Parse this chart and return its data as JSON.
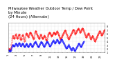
{
  "title": "Milwaukee Weather Outdoor Temp / Dew Point",
  "subtitle": "by Minute",
  "subtitle2": "(24 Hours) (Alternate)",
  "bg_color": "#ffffff",
  "plot_bg_color": "#ffffff",
  "grid_color": "#c0c0c0",
  "red_color": "#ff0000",
  "blue_color": "#0000ff",
  "title_fontsize": 3.8,
  "tick_fontsize": 2.5,
  "ylim": [
    10,
    90
  ],
  "ytick_vals": [
    10,
    20,
    30,
    40,
    50,
    60,
    70,
    80
  ],
  "ytick_labels": [
    "1.",
    "2.",
    "3.",
    "4.",
    "5.",
    "6.",
    "7.",
    "8."
  ],
  "red_data": [
    22,
    21,
    20,
    20,
    19,
    19,
    18,
    18,
    18,
    18,
    19,
    20,
    22,
    24,
    26,
    29,
    33,
    38,
    43,
    47,
    50,
    52,
    54,
    55,
    55,
    54,
    52,
    50,
    49,
    48,
    48,
    49,
    50,
    52,
    54,
    56,
    57,
    59,
    60,
    59,
    57,
    55,
    53,
    52,
    50,
    49,
    48,
    48,
    49,
    50,
    52,
    54,
    55,
    57,
    58,
    59,
    59,
    58,
    56,
    54,
    52,
    50,
    47,
    46,
    45,
    44,
    45,
    46,
    48,
    50,
    53,
    54,
    56,
    57,
    58,
    57,
    55,
    54,
    52,
    50,
    47,
    45,
    43,
    41,
    40,
    42,
    45,
    49,
    53,
    57,
    59,
    60,
    61,
    62,
    62,
    61,
    60,
    58,
    57,
    56,
    55,
    54,
    53,
    52,
    52,
    53,
    54,
    56,
    58,
    61,
    62,
    63,
    64,
    65,
    65,
    64,
    63,
    62,
    61,
    60,
    58,
    57,
    56,
    55,
    54,
    53,
    52,
    51,
    50,
    48,
    47,
    46,
    47,
    49,
    52,
    55,
    58,
    62,
    64,
    66,
    67,
    68,
    68,
    67,
    66,
    65,
    63,
    61,
    60,
    58,
    57,
    56,
    55,
    54,
    53,
    52,
    51,
    50,
    48,
    47,
    47,
    48,
    49,
    51,
    53,
    54,
    56,
    58,
    59,
    58,
    57,
    55,
    54,
    52,
    51,
    50,
    49,
    48,
    47,
    47,
    48,
    49,
    51,
    52,
    53,
    54,
    55,
    56,
    55,
    54,
    53,
    52,
    51,
    47,
    46,
    45,
    44,
    43,
    42,
    43,
    44,
    46,
    48,
    51,
    53,
    55,
    57,
    58,
    59,
    61,
    62,
    63,
    64,
    65,
    65,
    64,
    63,
    62,
    61,
    60,
    58,
    57,
    56,
    55,
    54,
    53,
    54,
    55,
    56,
    57,
    58,
    59,
    61,
    62,
    63,
    64,
    65,
    65,
    64,
    63,
    62,
    61,
    60,
    59,
    59,
    59,
    60,
    61,
    62,
    63,
    64,
    65,
    66,
    67,
    67,
    66,
    65,
    64,
    62,
    61,
    59,
    58,
    57,
    56,
    55,
    54,
    52,
    51,
    50,
    48,
    47,
    46,
    46,
    47,
    48,
    50,
    51,
    52,
    53,
    54,
    55,
    56,
    57,
    58,
    59,
    61,
    62,
    63,
    64,
    65,
    66,
    67,
    68,
    69,
    70,
    70,
    69,
    68,
    67,
    65,
    64,
    62,
    61,
    59,
    58,
    57,
    55,
    54,
    52,
    51,
    50,
    48,
    47,
    46,
    46,
    47,
    48,
    49,
    51,
    52,
    53,
    54,
    55,
    56,
    57,
    58,
    59,
    60,
    62,
    63,
    64,
    65,
    66,
    67,
    68,
    69,
    70,
    71,
    72,
    72,
    71,
    70,
    69,
    67,
    65,
    64,
    62,
    61,
    59,
    61,
    62,
    63,
    64,
    65,
    66,
    67,
    68,
    69,
    70,
    71,
    72,
    73,
    74,
    75,
    75,
    74,
    73,
    72,
    71,
    70,
    68,
    67,
    65,
    64,
    64,
    65,
    66,
    67,
    68,
    70,
    71,
    72,
    73,
    74,
    75,
    76,
    76,
    75,
    74,
    72,
    71,
    69,
    68,
    67,
    65,
    64,
    63,
    61,
    59,
    58,
    57,
    55,
    54,
    52,
    51,
    51,
    52,
    53,
    54,
    55,
    56,
    57,
    58,
    59,
    60,
    61,
    62,
    62,
    61,
    60,
    58,
    57,
    55,
    54,
    52,
    51,
    50,
    48,
    46,
    46,
    47,
    48,
    49,
    51,
    52,
    53,
    54,
    55,
    55,
    54,
    53,
    52,
    50,
    49,
    47,
    46,
    44,
    43,
    42,
    41,
    40,
    41,
    42,
    43,
    45,
    46,
    47,
    48,
    49,
    51,
    52,
    53,
    54,
    55,
    56,
    57,
    58,
    59,
    60,
    62,
    63,
    64,
    65,
    66,
    67,
    68,
    68,
    67,
    66,
    65,
    63,
    62,
    60,
    58,
    57,
    56,
    56,
    57,
    58,
    59,
    61,
    62,
    63,
    64,
    65,
    66,
    67,
    68,
    69,
    70,
    71,
    72,
    72
  ],
  "blue_data": [
    18,
    17,
    17,
    16,
    16,
    15,
    15,
    15,
    14,
    14,
    14,
    15,
    16,
    17,
    18,
    20,
    22,
    24,
    26,
    28,
    29,
    30,
    31,
    31,
    31,
    30,
    29,
    28,
    27,
    27,
    27,
    28,
    29,
    30,
    31,
    32,
    33,
    34,
    35,
    35,
    34,
    33,
    32,
    31,
    30,
    29,
    28,
    28,
    29,
    30,
    31,
    32,
    33,
    34,
    35,
    36,
    36,
    35,
    34,
    33,
    32,
    31,
    30,
    29,
    28,
    28,
    28,
    29,
    30,
    31,
    32,
    33,
    34,
    35,
    35,
    34,
    33,
    32,
    31,
    30,
    29,
    28,
    27,
    26,
    25,
    26,
    27,
    28,
    29,
    30,
    31,
    32,
    33,
    34,
    34,
    33,
    32,
    31,
    30,
    29,
    28,
    27,
    26,
    26,
    26,
    27,
    28,
    29,
    30,
    31,
    32,
    33,
    34,
    35,
    35,
    34,
    33,
    32,
    31,
    30,
    29,
    28,
    27,
    26,
    26,
    26,
    27,
    28,
    29,
    30,
    31,
    32,
    33,
    34,
    35,
    36,
    37,
    38,
    39,
    40,
    40,
    39,
    38,
    37,
    36,
    35,
    34,
    33,
    32,
    31,
    30,
    29,
    28,
    27,
    26,
    25,
    25,
    26,
    27,
    28,
    29,
    30,
    31,
    32,
    33,
    34,
    35,
    36,
    37,
    38,
    39,
    40,
    39,
    38,
    37,
    36,
    35,
    34,
    33,
    32,
    31,
    30,
    29,
    28,
    27,
    26,
    26,
    27,
    28,
    29,
    30,
    31,
    32,
    33,
    34,
    35,
    36,
    37,
    38,
    39,
    40,
    41,
    40,
    39,
    38,
    37,
    36,
    35,
    34,
    33,
    32,
    31,
    30,
    29,
    28,
    27,
    27,
    27,
    28,
    29,
    30,
    31,
    32,
    33,
    34,
    35,
    36,
    37,
    38,
    39,
    40,
    41,
    42,
    43,
    43,
    42,
    41,
    40,
    39,
    38,
    37,
    36,
    35,
    35,
    36,
    37,
    38,
    39,
    40,
    41,
    42,
    43,
    44,
    45,
    45,
    44,
    43,
    42,
    41,
    40,
    39,
    38,
    37,
    36,
    35,
    35,
    36,
    37,
    38,
    39,
    40,
    41,
    42,
    43,
    44,
    45,
    46,
    46,
    45,
    44,
    43,
    42,
    41,
    40,
    39,
    38,
    37,
    36,
    35,
    34,
    33,
    32,
    31,
    30,
    29,
    28,
    27,
    26,
    25,
    24,
    23,
    22,
    21,
    21,
    22,
    23,
    24,
    25,
    26,
    27,
    28,
    29,
    30,
    31,
    32,
    29,
    28,
    27,
    26,
    25,
    24,
    23,
    22,
    21,
    20,
    19,
    18,
    17,
    17,
    18,
    19,
    20,
    21,
    22,
    23,
    24,
    24,
    23,
    22,
    21,
    20,
    19,
    18,
    17,
    16,
    15,
    15,
    16,
    17,
    18,
    19,
    20,
    21,
    22,
    23,
    24,
    25,
    26,
    27,
    28,
    29,
    30,
    31,
    32,
    33,
    34,
    35,
    35,
    34,
    33,
    32,
    31,
    30,
    29,
    28,
    27,
    25,
    25,
    26,
    27,
    28,
    29,
    30,
    31,
    32,
    33,
    34,
    35,
    36,
    37,
    38,
    39,
    40,
    40
  ]
}
